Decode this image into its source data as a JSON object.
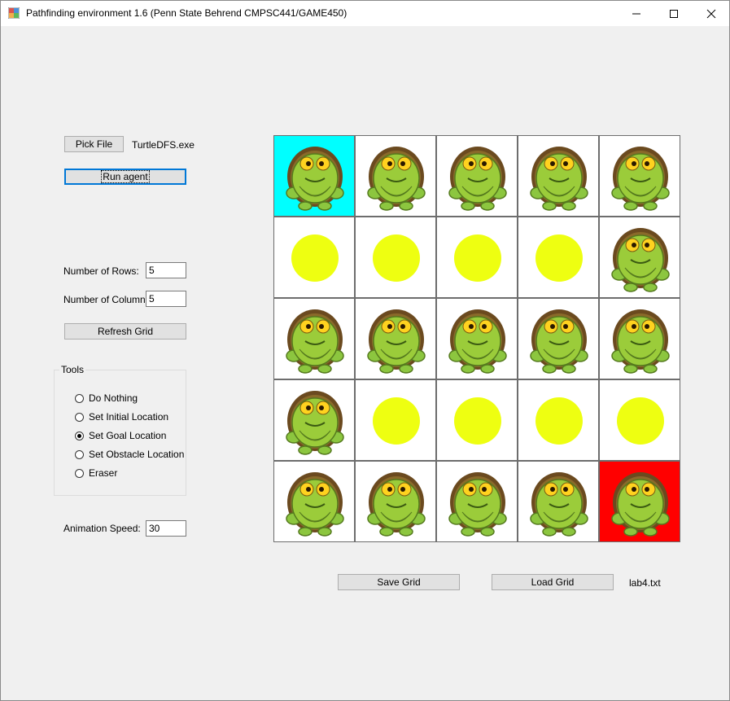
{
  "window": {
    "title": "Pathfinding environment 1.6 (Penn State Behrend CMPSC441/GAME450)"
  },
  "controls": {
    "pick_file_label": "Pick File",
    "file_name": "TurtleDFS.exe",
    "run_agent_label": "Run agent",
    "rows_label": "Number of Rows:",
    "rows_value": "5",
    "cols_label": "Number of Columns:",
    "cols_value": "5",
    "refresh_label": "Refresh Grid",
    "tools_title": "Tools",
    "tools": [
      {
        "label": "Do Nothing",
        "checked": false
      },
      {
        "label": "Set Initial Location",
        "checked": false
      },
      {
        "label": "Set Goal Location",
        "checked": true
      },
      {
        "label": "Set Obstacle Location",
        "checked": false
      },
      {
        "label": "Eraser",
        "checked": false
      }
    ],
    "speed_label": "Animation Speed:",
    "speed_value": "30",
    "save_grid_label": "Save Grid",
    "load_grid_label": "Load Grid",
    "grid_file_name": "lab4.txt"
  },
  "grid": {
    "rows": 5,
    "cols": 5,
    "colors": {
      "initial": "#00ffff",
      "goal": "#ff0000",
      "empty": "#ffffff",
      "dot": "#eeff11"
    },
    "cells": [
      [
        "turtle-initial",
        "turtle",
        "turtle",
        "turtle",
        "turtle"
      ],
      [
        "dot",
        "dot",
        "dot",
        "dot",
        "turtle"
      ],
      [
        "turtle",
        "turtle",
        "turtle",
        "turtle",
        "turtle"
      ],
      [
        "turtle",
        "dot",
        "dot",
        "dot",
        "dot"
      ],
      [
        "turtle",
        "turtle",
        "turtle",
        "turtle",
        "turtle-goal"
      ]
    ]
  }
}
